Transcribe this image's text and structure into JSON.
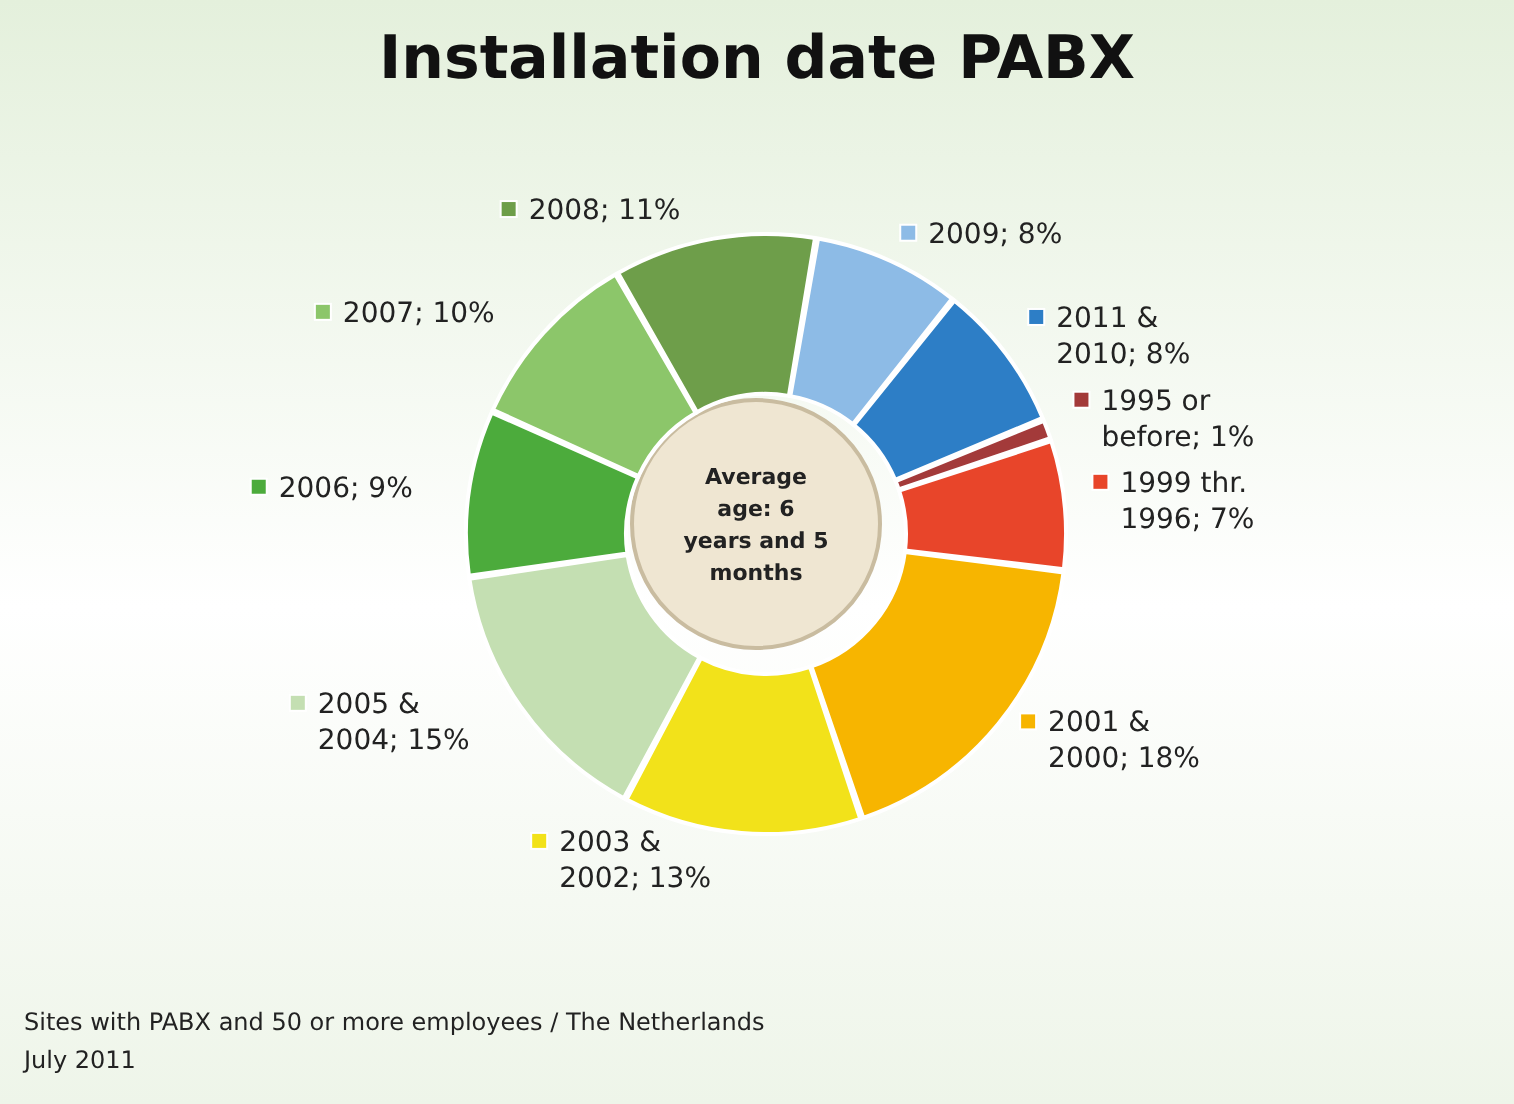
{
  "chart_data": {
    "type": "donut",
    "title": "Installation date PABX",
    "categories": [
      "2009",
      "2011 & 2010",
      "1995 or before",
      "1999 thr. 1996",
      "2001 & 2000",
      "2003 & 2002",
      "2005 & 2004",
      "2006",
      "2007",
      "2008"
    ],
    "value_labels": [
      "; 8%",
      "; 8%",
      "; 1%",
      "; 7%",
      "; 18%",
      "; 13%",
      "; 15%",
      "; 9%",
      "; 10%",
      "; 11%"
    ],
    "values": [
      8,
      8,
      1,
      7,
      18,
      13,
      15,
      9,
      10,
      11
    ],
    "colors": [
      "#8dbbe6",
      "#2d7ec6",
      "#a33a3a",
      "#e8452a",
      "#f7b500",
      "#f2e21a",
      "#c4dfb2",
      "#4cab3c",
      "#8cc66a",
      "#6e9e4a"
    ],
    "legend": "right",
    "annotations": [
      "Average age: 6 years and 5 months",
      "Sites with PABX and 50 or more employees / The Netherlands",
      "July 2011"
    ]
  }
}
